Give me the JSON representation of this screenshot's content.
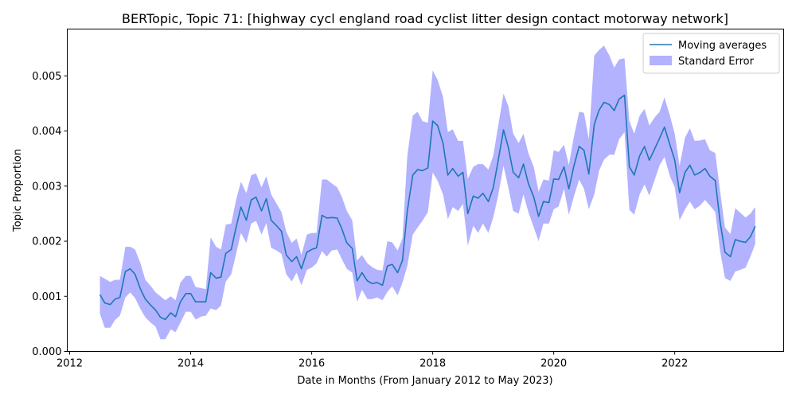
{
  "chart_data": {
    "type": "line",
    "title": "BERTopic, Topic 71: [highway cycl england road cyclist litter design contact motorway network]",
    "xlabel": "Date in Months (From January 2012 to May 2023)",
    "ylabel": "Topic Proportion",
    "xlim": [
      2011.96,
      2023.8
    ],
    "ylim": [
      0.0,
      0.00585
    ],
    "x_ticks": [
      2012,
      2014,
      2016,
      2018,
      2020,
      2022
    ],
    "x_tick_labels": [
      "2012",
      "2014",
      "2016",
      "2018",
      "2020",
      "2022"
    ],
    "y_ticks": [
      0.0,
      0.001,
      0.002,
      0.003,
      0.004,
      0.005
    ],
    "y_tick_labels": [
      "0.000",
      "0.001",
      "0.002",
      "0.003",
      "0.004",
      "0.005"
    ],
    "legend_position": "top-right",
    "grid": false,
    "series": [
      {
        "name": "Moving averages",
        "kind": "line",
        "color": "#1f77b4",
        "x": [
          2012.5,
          2012.58,
          2012.67,
          2012.75,
          2012.83,
          2012.92,
          2013.0,
          2013.08,
          2013.17,
          2013.25,
          2013.33,
          2013.42,
          2013.5,
          2013.58,
          2013.67,
          2013.75,
          2013.83,
          2013.92,
          2014.0,
          2014.08,
          2014.17,
          2014.25,
          2014.33,
          2014.42,
          2014.5,
          2014.58,
          2014.67,
          2014.75,
          2014.83,
          2014.92,
          2015.0,
          2015.08,
          2015.17,
          2015.25,
          2015.33,
          2015.42,
          2015.5,
          2015.58,
          2015.67,
          2015.75,
          2015.83,
          2015.92,
          2016.0,
          2016.08,
          2016.17,
          2016.25,
          2016.33,
          2016.42,
          2016.5,
          2016.58,
          2016.67,
          2016.75,
          2016.83,
          2016.92,
          2017.0,
          2017.08,
          2017.17,
          2017.25,
          2017.33,
          2017.42,
          2017.5,
          2017.58,
          2017.67,
          2017.75,
          2017.83,
          2017.92,
          2018.0,
          2018.08,
          2018.17,
          2018.25,
          2018.33,
          2018.42,
          2018.5,
          2018.58,
          2018.67,
          2018.75,
          2018.83,
          2018.92,
          2019.0,
          2019.08,
          2019.17,
          2019.25,
          2019.33,
          2019.42,
          2019.5,
          2019.58,
          2019.67,
          2019.75,
          2019.83,
          2019.92,
          2020.0,
          2020.08,
          2020.17,
          2020.25,
          2020.33,
          2020.42,
          2020.5,
          2020.58,
          2020.67,
          2020.75,
          2020.83,
          2020.92,
          2021.0,
          2021.08,
          2021.17,
          2021.25,
          2021.33,
          2021.42,
          2021.5,
          2021.58,
          2021.67,
          2021.75,
          2021.83,
          2021.92,
          2022.0,
          2022.08,
          2022.17,
          2022.25,
          2022.33,
          2022.42,
          2022.5,
          2022.58,
          2022.67,
          2022.75,
          2022.83,
          2022.92,
          2023.0,
          2023.08,
          2023.17,
          2023.25,
          2023.33
        ],
        "values": [
          0.00103,
          0.00088,
          0.00085,
          0.00095,
          0.00098,
          0.00145,
          0.0015,
          0.0014,
          0.00113,
          0.00095,
          0.00085,
          0.00075,
          0.00062,
          0.00058,
          0.0007,
          0.00063,
          0.0009,
          0.00105,
          0.00105,
          0.0009,
          0.0009,
          0.0009,
          0.00143,
          0.00133,
          0.00135,
          0.00178,
          0.00185,
          0.00225,
          0.00262,
          0.00238,
          0.00275,
          0.0028,
          0.00255,
          0.00277,
          0.00238,
          0.00228,
          0.00218,
          0.00175,
          0.00163,
          0.00172,
          0.0015,
          0.0018,
          0.00185,
          0.00188,
          0.00247,
          0.00242,
          0.00243,
          0.00242,
          0.00222,
          0.00197,
          0.00187,
          0.00128,
          0.00143,
          0.00128,
          0.00123,
          0.00125,
          0.0012,
          0.00155,
          0.00158,
          0.00143,
          0.00165,
          0.00255,
          0.0032,
          0.0033,
          0.00328,
          0.00333,
          0.00418,
          0.0041,
          0.00378,
          0.0032,
          0.00332,
          0.00318,
          0.00325,
          0.0025,
          0.00282,
          0.00278,
          0.00287,
          0.00272,
          0.00297,
          0.00345,
          0.00402,
          0.0037,
          0.00325,
          0.00315,
          0.0034,
          0.00305,
          0.0028,
          0.00245,
          0.00272,
          0.0027,
          0.00313,
          0.00312,
          0.00335,
          0.00295,
          0.00335,
          0.00372,
          0.00365,
          0.00322,
          0.00412,
          0.00438,
          0.00452,
          0.00448,
          0.00437,
          0.00458,
          0.00465,
          0.00335,
          0.0032,
          0.00355,
          0.00372,
          0.00347,
          0.00368,
          0.00387,
          0.00407,
          0.00375,
          0.00347,
          0.00288,
          0.00325,
          0.00338,
          0.0032,
          0.00325,
          0.00332,
          0.00318,
          0.0031,
          0.00235,
          0.0018,
          0.00172,
          0.00203,
          0.002,
          0.00198,
          0.00208,
          0.00227
        ]
      },
      {
        "name": "Standard Error",
        "kind": "band",
        "color": "#0000ff",
        "opacity": 0.3,
        "x": [
          2012.5,
          2012.58,
          2012.67,
          2012.75,
          2012.83,
          2012.92,
          2013.0,
          2013.08,
          2013.17,
          2013.25,
          2013.33,
          2013.42,
          2013.5,
          2013.58,
          2013.67,
          2013.75,
          2013.83,
          2013.92,
          2014.0,
          2014.08,
          2014.17,
          2014.25,
          2014.33,
          2014.42,
          2014.5,
          2014.58,
          2014.67,
          2014.75,
          2014.83,
          2014.92,
          2015.0,
          2015.08,
          2015.17,
          2015.25,
          2015.33,
          2015.42,
          2015.5,
          2015.58,
          2015.67,
          2015.75,
          2015.83,
          2015.92,
          2016.0,
          2016.08,
          2016.17,
          2016.25,
          2016.33,
          2016.42,
          2016.5,
          2016.58,
          2016.67,
          2016.75,
          2016.83,
          2016.92,
          2017.0,
          2017.08,
          2017.17,
          2017.25,
          2017.33,
          2017.42,
          2017.5,
          2017.58,
          2017.67,
          2017.75,
          2017.83,
          2017.92,
          2018.0,
          2018.08,
          2018.17,
          2018.25,
          2018.33,
          2018.42,
          2018.5,
          2018.58,
          2018.67,
          2018.75,
          2018.83,
          2018.92,
          2019.0,
          2019.08,
          2019.17,
          2019.25,
          2019.33,
          2019.42,
          2019.5,
          2019.58,
          2019.67,
          2019.75,
          2019.83,
          2019.92,
          2020.0,
          2020.08,
          2020.17,
          2020.25,
          2020.33,
          2020.42,
          2020.5,
          2020.58,
          2020.67,
          2020.75,
          2020.83,
          2020.92,
          2021.0,
          2021.08,
          2021.17,
          2021.25,
          2021.33,
          2021.42,
          2021.5,
          2021.58,
          2021.67,
          2021.75,
          2021.83,
          2021.92,
          2022.0,
          2022.08,
          2022.17,
          2022.25,
          2022.33,
          2022.42,
          2022.5,
          2022.58,
          2022.67,
          2022.75,
          2022.83,
          2022.92,
          2023.0,
          2023.08,
          2023.17,
          2023.25,
          2023.33
        ],
        "upper": [
          0.00137,
          0.00132,
          0.00126,
          0.0013,
          0.0013,
          0.0019,
          0.0019,
          0.00185,
          0.0016,
          0.0013,
          0.0012,
          0.00107,
          0.001,
          0.00093,
          0.001,
          0.00093,
          0.00125,
          0.00137,
          0.00137,
          0.00117,
          0.00115,
          0.00113,
          0.00207,
          0.0019,
          0.00185,
          0.0023,
          0.00232,
          0.00275,
          0.00308,
          0.00287,
          0.0032,
          0.00323,
          0.00298,
          0.00318,
          0.00285,
          0.00268,
          0.00253,
          0.00217,
          0.00197,
          0.00205,
          0.00175,
          0.00212,
          0.00215,
          0.00215,
          0.00312,
          0.00312,
          0.00305,
          0.00298,
          0.0028,
          0.00255,
          0.00238,
          0.00165,
          0.00175,
          0.0016,
          0.00153,
          0.00148,
          0.00147,
          0.002,
          0.00198,
          0.00183,
          0.00205,
          0.00355,
          0.00428,
          0.00435,
          0.00418,
          0.00415,
          0.0051,
          0.00493,
          0.00462,
          0.00398,
          0.00403,
          0.00382,
          0.00382,
          0.00313,
          0.00335,
          0.0034,
          0.0034,
          0.0033,
          0.00355,
          0.00408,
          0.00468,
          0.00445,
          0.00395,
          0.00378,
          0.00395,
          0.0036,
          0.00335,
          0.0029,
          0.00312,
          0.0031,
          0.00365,
          0.00362,
          0.00375,
          0.00338,
          0.00388,
          0.00435,
          0.00433,
          0.00385,
          0.00537,
          0.00547,
          0.00555,
          0.00537,
          0.00515,
          0.0053,
          0.00532,
          0.00418,
          0.00395,
          0.00428,
          0.0044,
          0.0041,
          0.00425,
          0.00435,
          0.00461,
          0.00428,
          0.00395,
          0.00337,
          0.00388,
          0.00405,
          0.00382,
          0.00383,
          0.00385,
          0.00365,
          0.0036,
          0.0029,
          0.00225,
          0.00213,
          0.0026,
          0.00252,
          0.00243,
          0.0025,
          0.00262
        ],
        "lower": [
          0.00068,
          0.00043,
          0.00043,
          0.00057,
          0.00065,
          0.00098,
          0.00107,
          0.00097,
          0.00077,
          0.00062,
          0.00053,
          0.00045,
          0.00022,
          0.00022,
          0.0004,
          0.00035,
          0.00052,
          0.00072,
          0.00072,
          0.00058,
          0.00063,
          0.00065,
          0.00078,
          0.00075,
          0.00083,
          0.00127,
          0.0014,
          0.00177,
          0.00215,
          0.00197,
          0.00232,
          0.00237,
          0.00212,
          0.00233,
          0.00188,
          0.00183,
          0.00177,
          0.0014,
          0.00127,
          0.00143,
          0.0012,
          0.00148,
          0.00152,
          0.0016,
          0.00182,
          0.00172,
          0.00183,
          0.00185,
          0.00167,
          0.0015,
          0.00143,
          0.0009,
          0.00112,
          0.00095,
          0.00095,
          0.00098,
          0.00093,
          0.00108,
          0.00118,
          0.00102,
          0.00125,
          0.00155,
          0.00212,
          0.00225,
          0.00237,
          0.00253,
          0.00325,
          0.0031,
          0.00285,
          0.0024,
          0.00262,
          0.00255,
          0.00268,
          0.00192,
          0.00228,
          0.00215,
          0.00232,
          0.00215,
          0.00243,
          0.00282,
          0.00337,
          0.00297,
          0.00255,
          0.0025,
          0.00285,
          0.00253,
          0.00225,
          0.002,
          0.00232,
          0.00232,
          0.00258,
          0.00263,
          0.00295,
          0.00248,
          0.0028,
          0.00312,
          0.00295,
          0.00258,
          0.00285,
          0.00328,
          0.00348,
          0.00357,
          0.00357,
          0.00385,
          0.00398,
          0.00257,
          0.00248,
          0.00285,
          0.00303,
          0.00283,
          0.00312,
          0.00338,
          0.00353,
          0.00318,
          0.00298,
          0.00238,
          0.00258,
          0.00272,
          0.00258,
          0.00265,
          0.00275,
          0.00265,
          0.00253,
          0.00182,
          0.00133,
          0.00128,
          0.00145,
          0.00148,
          0.00152,
          0.00172,
          0.00195
        ]
      }
    ]
  }
}
